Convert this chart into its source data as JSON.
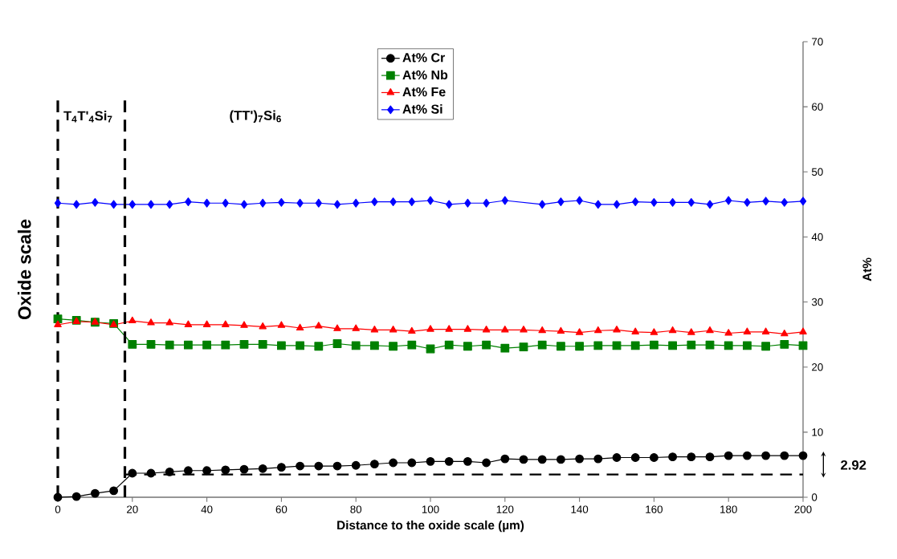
{
  "chart_data": {
    "type": "line",
    "xlabel": "Distance to the oxide scale (µm)",
    "ylabel": "At%",
    "x": [
      0,
      5,
      10,
      15,
      20,
      25,
      30,
      35,
      40,
      45,
      50,
      55,
      60,
      65,
      70,
      75,
      80,
      85,
      90,
      95,
      100,
      105,
      110,
      115,
      120,
      125,
      130,
      135,
      140,
      145,
      150,
      155,
      160,
      165,
      170,
      175,
      180,
      185,
      190,
      195,
      200
    ],
    "series": [
      {
        "name": "At% Cr",
        "color": "#000000",
        "marker": "circle",
        "values": [
          0,
          0.1,
          0.6,
          1.0,
          3.7,
          3.7,
          3.9,
          4.1,
          4.1,
          4.2,
          4.3,
          4.4,
          4.6,
          4.8,
          4.8,
          4.8,
          4.9,
          5.1,
          5.3,
          5.3,
          5.5,
          5.5,
          5.5,
          5.3,
          5.9,
          5.8,
          5.8,
          5.8,
          5.9,
          5.9,
          6.1,
          6.1,
          6.1,
          6.2,
          6.2,
          6.2,
          6.4,
          6.4,
          6.4,
          6.4,
          6.4
        ]
      },
      {
        "name": "At% Nb",
        "color": "#008000",
        "marker": "square",
        "values": [
          27.4,
          27.2,
          26.9,
          26.7,
          23.5,
          23.5,
          23.4,
          23.4,
          23.4,
          23.4,
          23.5,
          23.5,
          23.3,
          23.3,
          23.2,
          23.6,
          23.3,
          23.3,
          23.2,
          23.4,
          22.8,
          23.4,
          23.2,
          23.4,
          22.9,
          23.1,
          23.4,
          23.2,
          23.2,
          23.3,
          23.3,
          23.3,
          23.4,
          23.3,
          23.4,
          23.4,
          23.3,
          23.3,
          23.2,
          23.5,
          23.3
        ]
      },
      {
        "name": "At% Fe",
        "color": "#ff0000",
        "marker": "triangle",
        "values": [
          26.5,
          27.0,
          26.9,
          26.5,
          27.1,
          26.8,
          26.8,
          26.5,
          26.5,
          26.5,
          26.4,
          26.2,
          26.4,
          26.0,
          26.3,
          25.9,
          25.9,
          25.7,
          25.7,
          25.5,
          25.8,
          25.8,
          25.8,
          25.7,
          25.7,
          25.7,
          25.6,
          25.5,
          25.3,
          25.6,
          25.7,
          25.4,
          25.3,
          25.6,
          25.3,
          25.6,
          25.2,
          25.4,
          25.4,
          25.1,
          25.4
        ]
      },
      {
        "name": "At% Si",
        "color": "#0000ff",
        "marker": "diamond",
        "x": [
          0,
          5,
          10,
          15,
          20,
          25,
          30,
          35,
          40,
          45,
          50,
          55,
          60,
          65,
          70,
          75,
          80,
          85,
          90,
          95,
          100,
          105,
          110,
          115,
          120,
          130,
          135,
          140,
          145,
          150,
          155,
          160,
          165,
          170,
          175,
          180,
          185,
          190,
          195,
          200
        ],
        "values": [
          45.2,
          45.0,
          45.3,
          45.0,
          45.0,
          45.0,
          45.0,
          45.4,
          45.2,
          45.2,
          45.0,
          45.2,
          45.3,
          45.2,
          45.2,
          45.0,
          45.2,
          45.4,
          45.4,
          45.4,
          45.6,
          45.0,
          45.2,
          45.2,
          45.6,
          45.0,
          45.4,
          45.6,
          45.0,
          45.0,
          45.4,
          45.3,
          45.3,
          45.3,
          45.0,
          45.6,
          45.3,
          45.5,
          45.3,
          45.5
        ]
      }
    ],
    "xlim": [
      0,
      200
    ],
    "xticks": [
      0,
      20,
      40,
      60,
      80,
      100,
      120,
      140,
      160,
      180,
      200
    ],
    "ylim": [
      0,
      70
    ],
    "yticks": [
      0,
      10,
      20,
      30,
      40,
      50,
      60,
      70
    ],
    "ref_lines": [
      {
        "axis": "x",
        "value": 0,
        "color": "#000000",
        "line_style": "dashed"
      },
      {
        "axis": "x",
        "value": 18,
        "color": "#000000",
        "line_style": "dashed"
      },
      {
        "axis": "y",
        "value": 3.5,
        "color": "#000000",
        "line_style": "dashed"
      }
    ],
    "annotations": [
      "T$_{4}$T'$_{4}$Si$_{7}$",
      "(TT')$_{7}$Si$_{6}$",
      "Oxide scale",
      "2.92"
    ],
    "legend": "top",
    "grid": false
  }
}
